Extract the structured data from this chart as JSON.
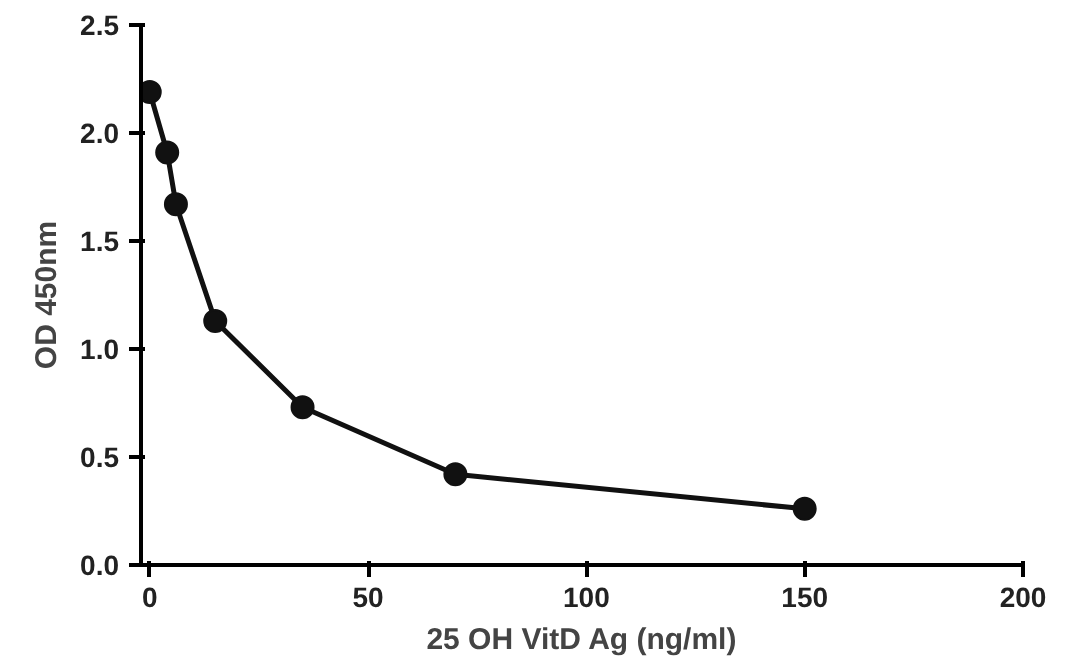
{
  "chart_data": {
    "type": "line",
    "xlabel": "25 OH VitD Ag (ng/ml)",
    "ylabel": "OD 450nm",
    "x": [
      0,
      4,
      6,
      15,
      35,
      70,
      150
    ],
    "series": [
      {
        "color": "#111111",
        "values": [
          2.19,
          1.91,
          1.67,
          1.13,
          0.73,
          0.42,
          0.26
        ]
      }
    ],
    "xlim": [
      -2,
      200
    ],
    "ylim": [
      0,
      2.5
    ],
    "xticks": [
      0,
      50,
      100,
      150,
      200
    ],
    "yticks": [
      {
        "value": 0,
        "label": "0.0"
      },
      {
        "value": 0.5,
        "label": "0.5"
      },
      {
        "value": 1,
        "label": "1.0"
      },
      {
        "value": 1.5,
        "label": "1.5"
      },
      {
        "value": 2,
        "label": "2.0"
      },
      {
        "value": 2.5,
        "label": "2.5"
      }
    ],
    "marker": "circle",
    "line_style": "solid",
    "grid": false
  }
}
